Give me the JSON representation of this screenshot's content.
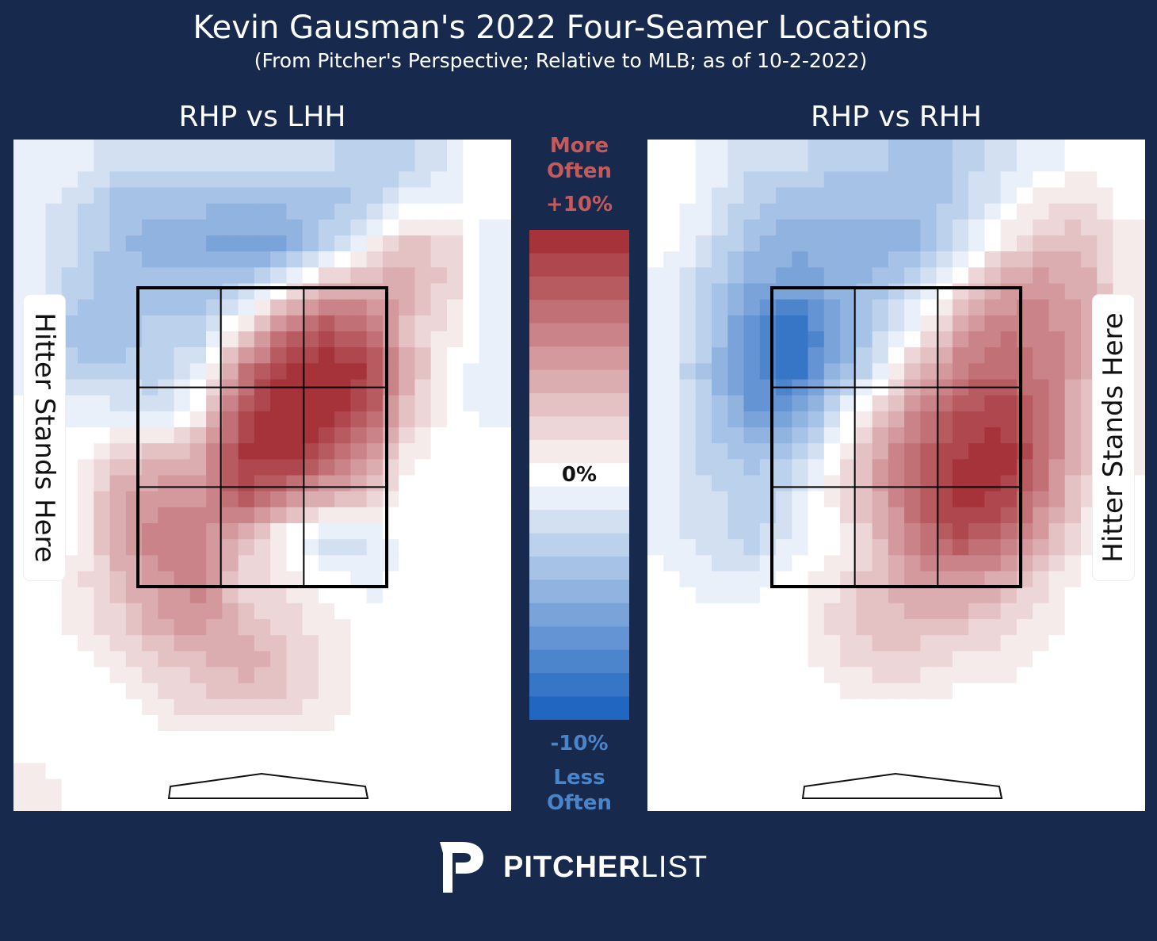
{
  "title": "Kevin Gausman's 2022 Four-Seamer Locations",
  "subtitle": "(From Pitcher's Perspective; Relative to MLB; as of 10-2-2022)",
  "colorbar": {
    "top_label_line1": "More",
    "top_label_line2": "Often",
    "max_label": "+10%",
    "mid_label": "0%",
    "min_label": "-10%",
    "bottom_label_line1": "Less",
    "bottom_label_line2": "Often",
    "range": [
      -10,
      10
    ],
    "levels": 21,
    "colors": {
      "max": "#a6323a",
      "mid": "#ffffff",
      "min": "#2166c0",
      "more_text": "#c45a5a",
      "less_text": "#4a84c9"
    }
  },
  "logo": {
    "bold": "PITCHER",
    "light": "LIST"
  },
  "chart_data": [
    {
      "type": "heatmap",
      "title": "RHP vs LHH",
      "annotation": "Hitter Stands Here",
      "hitter_side": "left",
      "value_unit": "% relative to MLB",
      "zlim": [
        -10,
        10
      ],
      "grid": [
        [
          -1,
          -1,
          -2,
          -2,
          -2,
          -2,
          -2,
          -2,
          -3,
          -3,
          -1,
          0
        ],
        [
          -1,
          -2,
          -4,
          -4,
          -4,
          -4,
          -4,
          -4,
          -3,
          -1,
          -1,
          0
        ],
        [
          -1,
          -2,
          -4,
          -5,
          -5,
          -6,
          -6,
          -3,
          0,
          3,
          2,
          -1
        ],
        [
          -1,
          -3,
          -4,
          -4,
          -4,
          -3,
          0,
          3,
          4,
          4,
          2,
          -1
        ],
        [
          -1,
          -4,
          -4,
          -3,
          -3,
          1,
          6,
          8,
          7,
          3,
          1,
          -1
        ],
        [
          -1,
          -3,
          -3,
          -3,
          -1,
          6,
          9,
          10,
          9,
          4,
          0,
          -1
        ],
        [
          0,
          -1,
          -1,
          -2,
          1,
          8,
          10,
          10,
          8,
          3,
          0,
          -1
        ],
        [
          0,
          0,
          2,
          3,
          4,
          9,
          10,
          8,
          5,
          1,
          0,
          0
        ],
        [
          0,
          0,
          4,
          5,
          5,
          8,
          6,
          4,
          3,
          0,
          0,
          0
        ],
        [
          0,
          0,
          4,
          6,
          6,
          3,
          0,
          -2,
          -2,
          0,
          0,
          0
        ],
        [
          0,
          1,
          3,
          5,
          6,
          2,
          1,
          0,
          -1,
          0,
          0,
          0
        ],
        [
          0,
          1,
          2,
          4,
          5,
          3,
          2,
          1,
          0,
          0,
          0,
          0
        ],
        [
          0,
          0,
          1,
          2,
          3,
          4,
          3,
          1,
          0,
          0,
          0,
          0
        ],
        [
          0,
          0,
          0,
          1,
          2,
          2,
          2,
          1,
          0,
          0,
          0,
          0
        ],
        [
          0,
          0,
          0,
          0,
          0,
          0,
          0,
          0,
          0,
          0,
          0,
          0
        ],
        [
          1,
          0,
          0,
          0,
          0,
          0,
          0,
          0,
          0,
          0,
          0,
          0
        ]
      ]
    },
    {
      "type": "heatmap",
      "title": "RHP vs RHH",
      "annotation": "Hitter Stands Here",
      "hitter_side": "right",
      "value_unit": "% relative to MLB",
      "zlim": [
        -10,
        10
      ],
      "grid": [
        [
          0,
          -1,
          -2,
          -2,
          -3,
          -3,
          -4,
          -3,
          -2,
          -1,
          0,
          0
        ],
        [
          0,
          -1,
          -3,
          -4,
          -4,
          -4,
          -4,
          -3,
          -1,
          1,
          2,
          0
        ],
        [
          0,
          -2,
          -4,
          -5,
          -5,
          -5,
          -5,
          -2,
          1,
          3,
          3,
          1
        ],
        [
          -1,
          -3,
          -5,
          -6,
          -5,
          -4,
          -2,
          1,
          4,
          5,
          4,
          1
        ],
        [
          -1,
          -3,
          -7,
          -9,
          -6,
          -3,
          0,
          4,
          6,
          6,
          4,
          1
        ],
        [
          -1,
          -4,
          -7,
          -9,
          -5,
          -2,
          3,
          6,
          7,
          6,
          4,
          1
        ],
        [
          -1,
          -3,
          -6,
          -6,
          -2,
          2,
          6,
          8,
          9,
          7,
          3,
          1
        ],
        [
          -1,
          -3,
          -4,
          -3,
          0,
          4,
          7,
          9,
          10,
          7,
          3,
          1
        ],
        [
          -1,
          -2,
          -3,
          -2,
          1,
          4,
          7,
          10,
          9,
          6,
          2,
          0
        ],
        [
          -1,
          -2,
          -3,
          -1,
          0,
          3,
          6,
          8,
          7,
          4,
          1,
          0
        ],
        [
          0,
          -1,
          -1,
          0,
          1,
          3,
          5,
          5,
          4,
          2,
          0,
          0
        ],
        [
          0,
          0,
          0,
          0,
          2,
          3,
          3,
          3,
          2,
          1,
          0,
          0
        ],
        [
          0,
          0,
          0,
          0,
          1,
          2,
          2,
          1,
          1,
          0,
          0,
          0
        ],
        [
          0,
          0,
          0,
          0,
          0,
          0,
          0,
          0,
          0,
          0,
          0,
          0
        ],
        [
          0,
          0,
          0,
          0,
          0,
          0,
          0,
          0,
          0,
          0,
          0,
          0
        ],
        [
          0,
          0,
          0,
          0,
          0,
          0,
          0,
          0,
          0,
          0,
          0,
          0
        ]
      ]
    }
  ]
}
